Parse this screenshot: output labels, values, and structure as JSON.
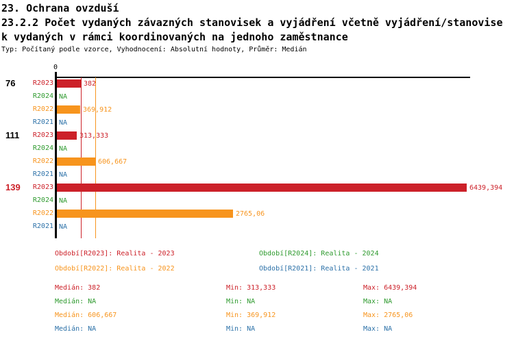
{
  "header": {
    "line1": "23. Ochrana ovzduší",
    "line2": "23.2.2 Počet vydaných závazných stanovisek a vyjádření včetně vyjádření/stanovise",
    "line3": "k vydaných v rámci koordinovaných na jednoho zaměstnance",
    "meta": "Typ: Počítaný podle vzorce, Vyhodnocení: Absolutní hodnoty, Průměr: Medián"
  },
  "colors": {
    "R2023": "#cc2129",
    "R2024": "#2e9a2e",
    "R2022": "#f7941d",
    "R2021": "#2c71a8",
    "axis": "#000000",
    "group_label_default": "#000000",
    "group_label_highlight": "#cc2129"
  },
  "chart_data": {
    "type": "bar",
    "orientation": "horizontal",
    "x_axis": {
      "zero_label": "0",
      "min": 0,
      "max_value_shown": 6439.394
    },
    "series_order": [
      "R2023",
      "R2024",
      "R2022",
      "R2021"
    ],
    "median_lines": [
      {
        "series": "R2023",
        "value": 382
      },
      {
        "series": "R2022",
        "value": 606.667
      }
    ],
    "groups": [
      {
        "label": "76",
        "highlight": false,
        "rows": [
          {
            "series": "R2023",
            "value": 382,
            "display": "382"
          },
          {
            "series": "R2024",
            "value": null,
            "display": "NA"
          },
          {
            "series": "R2022",
            "value": 369.912,
            "display": "369,912"
          },
          {
            "series": "R2021",
            "value": null,
            "display": "NA"
          }
        ]
      },
      {
        "label": "111",
        "highlight": false,
        "rows": [
          {
            "series": "R2023",
            "value": 313.333,
            "display": "313,333"
          },
          {
            "series": "R2024",
            "value": null,
            "display": "NA"
          },
          {
            "series": "R2022",
            "value": 606.667,
            "display": "606,667"
          },
          {
            "series": "R2021",
            "value": null,
            "display": "NA"
          }
        ]
      },
      {
        "label": "139",
        "highlight": true,
        "rows": [
          {
            "series": "R2023",
            "value": 6439.394,
            "display": "6439,394"
          },
          {
            "series": "R2024",
            "value": null,
            "display": "NA"
          },
          {
            "series": "R2022",
            "value": 2765.06,
            "display": "2765,06"
          },
          {
            "series": "R2021",
            "value": null,
            "display": "NA"
          }
        ]
      }
    ]
  },
  "legend": {
    "rows": [
      [
        {
          "series": "R2023",
          "label": "Období[R2023]: Realita - 2023"
        },
        {
          "series": "R2024",
          "label": "Období[R2024]: Realita - 2024"
        }
      ],
      [
        {
          "series": "R2022",
          "label": "Období[R2022]: Realita - 2022"
        },
        {
          "series": "R2021",
          "label": "Období[R2021]: Realita - 2021"
        }
      ]
    ]
  },
  "stats": {
    "labels": {
      "median": "Medián",
      "min": "Min",
      "max": "Max"
    },
    "rows": [
      {
        "series": "R2023",
        "median": "382",
        "min": "313,333",
        "max": "6439,394"
      },
      {
        "series": "R2024",
        "median": "NA",
        "min": "NA",
        "max": "NA"
      },
      {
        "series": "R2022",
        "median": "606,667",
        "min": "369,912",
        "max": "2765,06"
      },
      {
        "series": "R2021",
        "median": "NA",
        "min": "NA",
        "max": "NA"
      }
    ]
  }
}
